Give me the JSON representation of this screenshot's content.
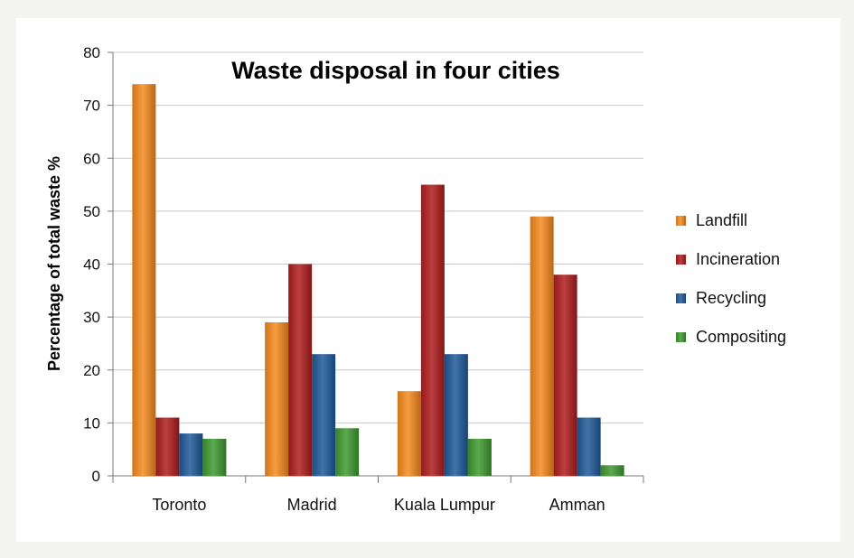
{
  "chart_data": {
    "type": "bar",
    "title": "Waste disposal in four cities",
    "xlabel": "",
    "ylabel": "Percentage of total waste %",
    "ylim": [
      0,
      80
    ],
    "yticks": [
      0,
      10,
      20,
      30,
      40,
      50,
      60,
      70,
      80
    ],
    "grid": true,
    "legend_position": "right",
    "categories": [
      "Toronto",
      "Madrid",
      "Kuala Lumpur",
      "Amman"
    ],
    "series": [
      {
        "name": "Landfill",
        "color": "#f58a1f",
        "values": [
          74,
          29,
          16,
          49
        ]
      },
      {
        "name": "Incineration",
        "color": "#b01d1d",
        "values": [
          11,
          40,
          55,
          38
        ]
      },
      {
        "name": "Recycling",
        "color": "#1f5a9a",
        "values": [
          8,
          23,
          23,
          11
        ]
      },
      {
        "name": "Compositing",
        "color": "#3f9a30",
        "values": [
          7,
          9,
          7,
          2
        ]
      }
    ]
  }
}
